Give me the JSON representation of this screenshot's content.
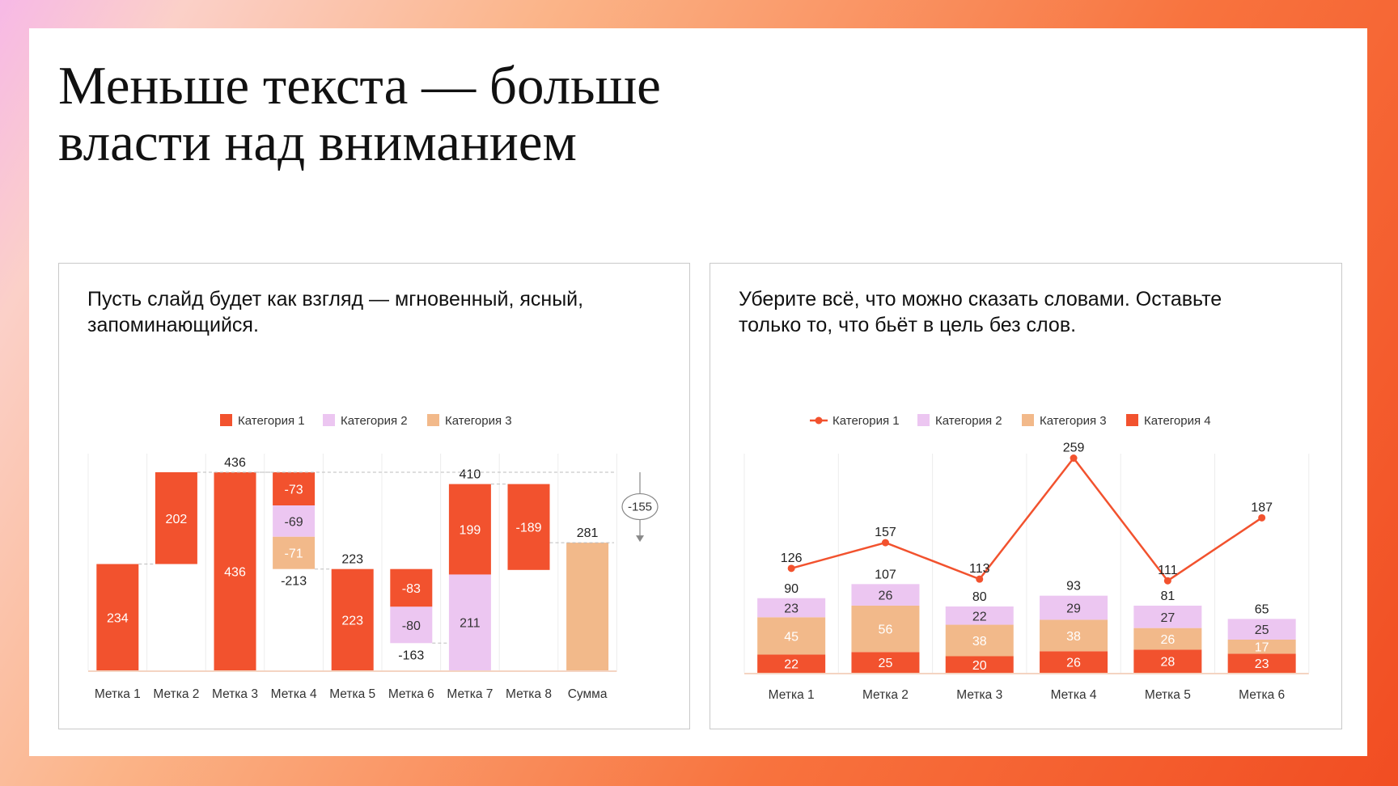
{
  "slide": {
    "title_line1": "Меньше текста — больше",
    "title_line2": "власти над вниманием"
  },
  "left_panel": {
    "caption_line1": "Пусть слайд будет как взгляд — мгновенный, ясный,",
    "caption_line2": "запоминающийся."
  },
  "right_panel": {
    "caption_line1": "Уберите всё, что можно сказать словами. Оставьте",
    "caption_line2": "только то, что бьёт в цель без слов."
  },
  "chart_data": [
    {
      "type": "waterfall",
      "categories": [
        "Метка 1",
        "Метка 2",
        "Метка 3",
        "Метка 4",
        "Метка 5",
        "Метка 6",
        "Метка 7",
        "Метка 8",
        "Сумма"
      ],
      "legend": [
        {
          "name": "Категория 1",
          "color": "#f2522e"
        },
        {
          "name": "Категория 2",
          "color": "#ecc6f1"
        },
        {
          "name": "Категория 3",
          "color": "#f2b98a"
        }
      ],
      "bars": [
        {
          "label": "Метка 1",
          "segments": [
            {
              "series": 0,
              "value": 234
            }
          ],
          "base": 0
        },
        {
          "label": "Метка 2",
          "segments": [
            {
              "series": 0,
              "value": 202
            }
          ],
          "base": 234
        },
        {
          "label": "Метка 3",
          "segments": [
            {
              "series": 0,
              "value": 436
            }
          ],
          "base": 0,
          "total": "436"
        },
        {
          "label": "Метка 4",
          "segments": [
            {
              "series": 0,
              "value": -73
            },
            {
              "series": 1,
              "value": -69
            },
            {
              "series": 2,
              "value": -71
            }
          ],
          "base": 436,
          "total": "-213"
        },
        {
          "label": "Метка 5",
          "segments": [
            {
              "series": 0,
              "value": 223
            }
          ],
          "base": 0,
          "total": "223"
        },
        {
          "label": "Метка 6",
          "segments": [
            {
              "series": 0,
              "value": -83
            },
            {
              "series": 1,
              "value": -80
            }
          ],
          "base": 223,
          "total": "-163"
        },
        {
          "label": "Метка 7",
          "segments": [
            {
              "series": 1,
              "value": 211
            },
            {
              "series": 0,
              "value": 199
            }
          ],
          "base": 0,
          "total": "410"
        },
        {
          "label": "Метка 8",
          "segments": [
            {
              "series": 0,
              "value": -189
            }
          ],
          "base": 410
        },
        {
          "label": "Сумма",
          "segments": [
            {
              "series": 2,
              "value": 281
            }
          ],
          "base": 0,
          "total": "281"
        }
      ],
      "difference_annotation": "-155",
      "ylim": [
        0,
        450
      ]
    },
    {
      "type": "stacked-bar-with-line",
      "categories": [
        "Метка 1",
        "Метка 2",
        "Метка 3",
        "Метка 4",
        "Метка 5",
        "Метка 6"
      ],
      "legend": [
        {
          "name": "Категория 1",
          "color": "#f2522e",
          "kind": "line"
        },
        {
          "name": "Категория 2",
          "color": "#ecc6f1",
          "kind": "bar"
        },
        {
          "name": "Категория 3",
          "color": "#f2b98a",
          "kind": "bar"
        },
        {
          "name": "Категория 4",
          "color": "#f2522e",
          "kind": "bar"
        }
      ],
      "line": {
        "name": "Категория 1",
        "values": [
          126,
          157,
          113,
          259,
          111,
          187
        ]
      },
      "stacked_series": [
        {
          "name": "Категория 4",
          "values": [
            22,
            25,
            20,
            26,
            28,
            23
          ]
        },
        {
          "name": "Категория 3",
          "values": [
            45,
            56,
            38,
            38,
            26,
            17
          ]
        },
        {
          "name": "Категория 2",
          "values": [
            23,
            26,
            22,
            29,
            27,
            25
          ]
        }
      ],
      "totals": [
        90,
        107,
        80,
        93,
        81,
        65
      ],
      "ylim": [
        0,
        270
      ]
    }
  ]
}
